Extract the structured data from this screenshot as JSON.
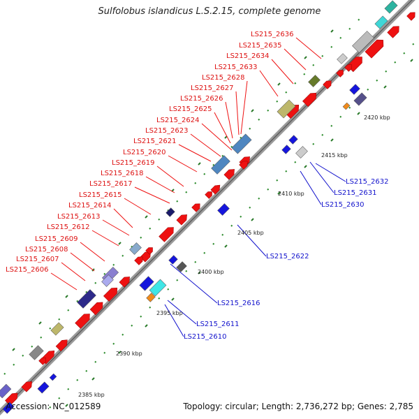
{
  "title": "Sulfolobus islandicus L.S.2.15, complete genome",
  "footer": {
    "accession": "Accession: NC_012589",
    "topology": "Topology: circular; Length: 2,736,272 bp; Genes: 2,785"
  },
  "colors": {
    "forward_label": "#dd1111",
    "reverse_label": "#1111cc",
    "cds": "#ee1111",
    "backbone": "#999999",
    "tick": "#228822",
    "reverse_cds": "#1515dd"
  },
  "forward_labels": [
    "LS215_2606",
    "LS215_2607",
    "LS215_2608",
    "LS215_2609",
    "LS215_2612",
    "LS215_2613",
    "LS215_2614",
    "LS215_2615",
    "LS215_2617",
    "LS215_2618",
    "LS215_2619",
    "LS215_2620",
    "LS215_2621",
    "LS215_2623",
    "LS215_2624",
    "LS215_2625",
    "LS215_2626",
    "LS215_2627",
    "LS215_2628",
    "LS215_2633",
    "LS215_2634",
    "LS215_2635",
    "LS215_2636"
  ],
  "reverse_labels": [
    "LS215_2610",
    "LS215_2611",
    "LS215_2616",
    "LS215_2622",
    "LS215_2630",
    "LS215_2631",
    "LS215_2632"
  ],
  "scale_labels": [
    "2385 kbp",
    "2390 kbp",
    "2395 kbp",
    "2400 kbp",
    "2405 kbp",
    "2410 kbp",
    "2415 kbp",
    "2420 kbp"
  ]
}
